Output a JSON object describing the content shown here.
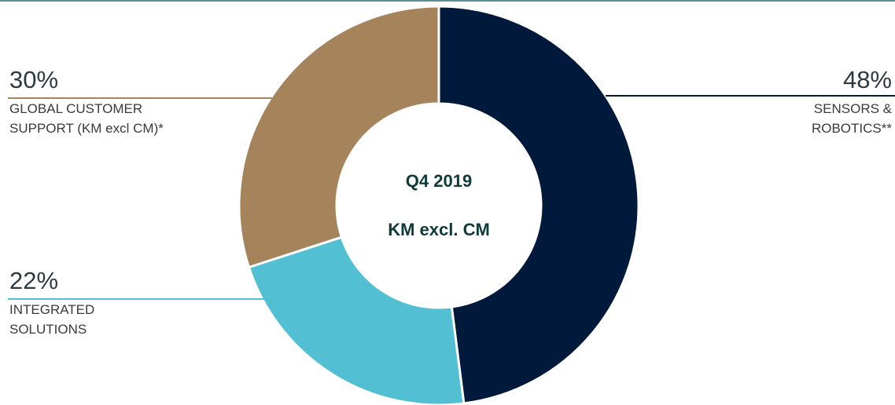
{
  "chart_data": {
    "type": "pie",
    "donut": true,
    "title": "Q4 2019",
    "subtitle": "KM excl. CM",
    "categories": [
      "SENSORS & ROBOTICS**",
      "INTEGRATED SOLUTIONS",
      "GLOBAL CUSTOMER SUPPORT (KM excl CM)*"
    ],
    "values": [
      48,
      22,
      30
    ],
    "value_labels": [
      "48%",
      "22%",
      "30%"
    ],
    "colors": [
      "#01193a",
      "#52bfd3",
      "#a6845b"
    ]
  }
}
